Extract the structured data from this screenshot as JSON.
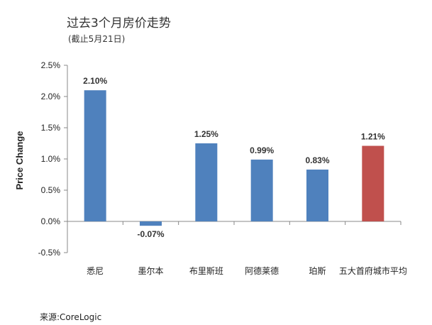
{
  "title": "过去3个月房价走势",
  "subtitle": "(截止5月21日)",
  "source": "来源:CoreLogic",
  "chart_data": {
    "type": "bar",
    "ylabel": "Price Change",
    "xlabel": "",
    "ylim": [
      -0.5,
      2.5
    ],
    "yticks": [
      "-0.5%",
      "0.0%",
      "0.5%",
      "1.0%",
      "1.5%",
      "2.0%",
      "2.5%"
    ],
    "categories": [
      "悉尼",
      "墨尔本",
      "布里斯班",
      "阿德莱德",
      "珀斯",
      "五大首府城市平均"
    ],
    "values": [
      2.1,
      -0.07,
      1.25,
      0.99,
      0.83,
      1.21
    ],
    "data_labels": [
      "2.10%",
      "-0.07%",
      "1.25%",
      "0.99%",
      "0.83%",
      "1.21%"
    ],
    "colors": [
      "#4F81BD",
      "#4F81BD",
      "#4F81BD",
      "#4F81BD",
      "#4F81BD",
      "#C0504D"
    ],
    "grid": false,
    "legend": "none"
  }
}
